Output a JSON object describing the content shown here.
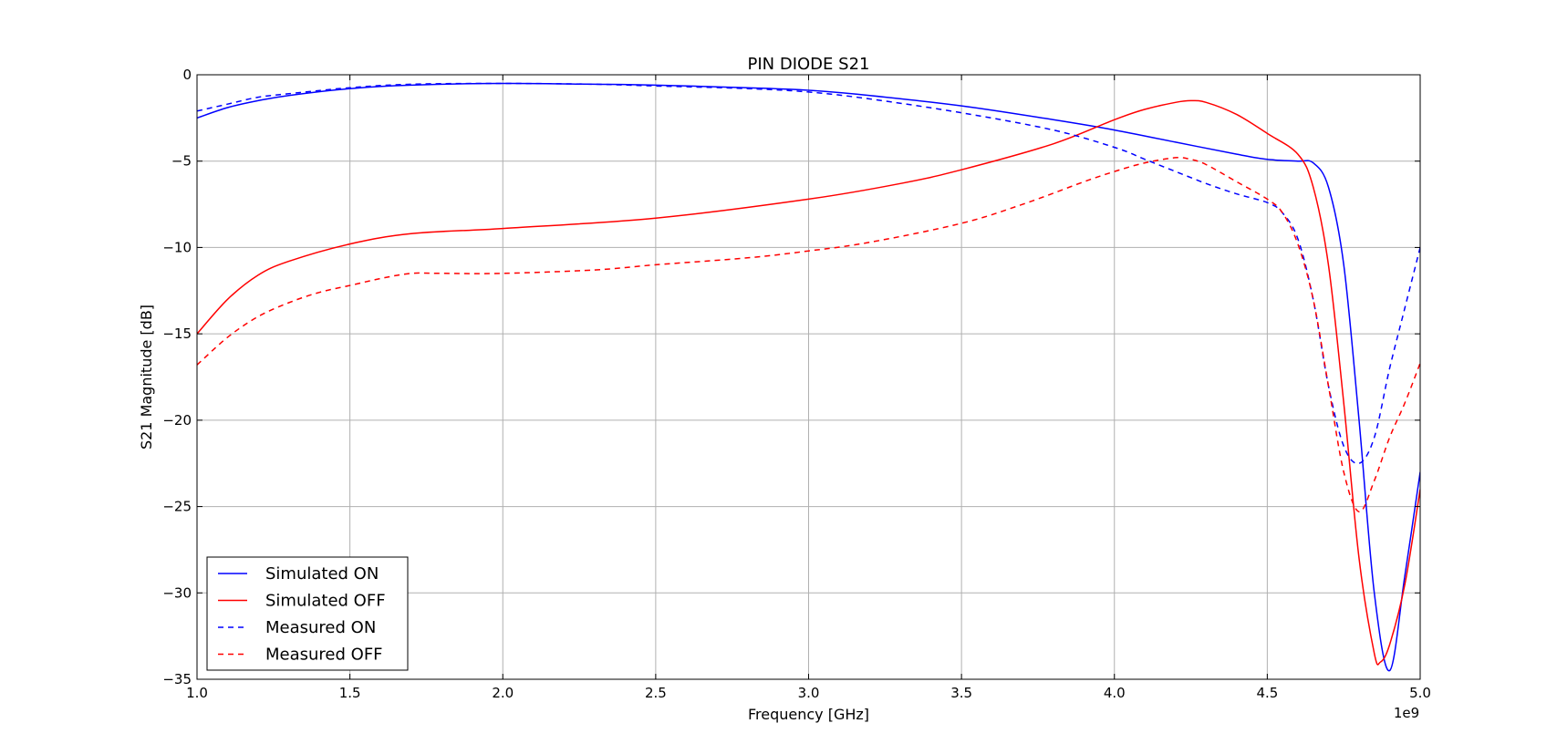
{
  "chart_data": {
    "type": "line",
    "title": "PIN DIODE S21",
    "xlabel": "Frequency [GHz]",
    "ylabel": "S21 Magnitude [dB]",
    "x_offset_text": "1e9",
    "xlim": [
      1.0,
      5.0
    ],
    "ylim": [
      -35,
      0
    ],
    "xticks": [
      "1.0",
      "1.5",
      "2.0",
      "2.5",
      "3.0",
      "3.5",
      "4.0",
      "4.5",
      "5.0"
    ],
    "yticks": [
      "0",
      "−5",
      "−10",
      "−15",
      "−20",
      "−25",
      "−30",
      "−35"
    ],
    "grid": true,
    "legend_position": "bottom-left",
    "series": [
      {
        "name": "Simulated ON",
        "color": "#0000ff",
        "style": "solid",
        "x": [
          1.0,
          1.1,
          1.2,
          1.3,
          1.5,
          1.7,
          2.0,
          2.3,
          2.5,
          2.8,
          3.0,
          3.2,
          3.5,
          3.8,
          4.0,
          4.2,
          4.4,
          4.5,
          4.6,
          4.65,
          4.7,
          4.75,
          4.8,
          4.85,
          4.9,
          4.95,
          5.0
        ],
        "y": [
          -2.5,
          -1.9,
          -1.5,
          -1.2,
          -0.8,
          -0.6,
          -0.5,
          -0.55,
          -0.6,
          -0.75,
          -0.9,
          -1.2,
          -1.8,
          -2.6,
          -3.2,
          -3.9,
          -4.6,
          -4.9,
          -5.0,
          -5.1,
          -6.5,
          -11.0,
          -20.0,
          -30.0,
          -34.5,
          -29.0,
          -23.0
        ]
      },
      {
        "name": "Simulated OFF",
        "color": "#ff0000",
        "style": "solid",
        "x": [
          1.0,
          1.1,
          1.2,
          1.3,
          1.5,
          1.7,
          2.0,
          2.5,
          3.0,
          3.3,
          3.5,
          3.8,
          4.0,
          4.1,
          4.2,
          4.25,
          4.3,
          4.4,
          4.5,
          4.6,
          4.65,
          4.7,
          4.75,
          4.8,
          4.85,
          4.87,
          4.9,
          4.95,
          5.0
        ],
        "y": [
          -15.0,
          -13.0,
          -11.6,
          -10.8,
          -9.8,
          -9.2,
          -8.9,
          -8.3,
          -7.2,
          -6.3,
          -5.5,
          -4.0,
          -2.6,
          -2.0,
          -1.6,
          -1.5,
          -1.6,
          -2.3,
          -3.4,
          -4.6,
          -6.5,
          -11.0,
          -19.0,
          -28.0,
          -33.5,
          -34.0,
          -33.0,
          -29.5,
          -24.0
        ]
      },
      {
        "name": "Measured ON",
        "color": "#0000ff",
        "style": "dashed",
        "x": [
          1.0,
          1.1,
          1.2,
          1.3,
          1.5,
          1.7,
          2.0,
          2.3,
          2.5,
          2.8,
          3.0,
          3.2,
          3.5,
          3.8,
          4.0,
          4.1,
          4.2,
          4.3,
          4.4,
          4.5,
          4.55,
          4.6,
          4.65,
          4.7,
          4.75,
          4.8,
          4.85,
          4.9,
          4.95,
          5.0
        ],
        "y": [
          -2.1,
          -1.7,
          -1.3,
          -1.1,
          -0.75,
          -0.55,
          -0.5,
          -0.55,
          -0.65,
          -0.8,
          -1.0,
          -1.4,
          -2.2,
          -3.2,
          -4.2,
          -4.9,
          -5.6,
          -6.3,
          -6.9,
          -7.4,
          -8.0,
          -9.5,
          -13.0,
          -18.0,
          -21.5,
          -22.5,
          -21.0,
          -17.0,
          -13.5,
          -10.0
        ]
      },
      {
        "name": "Measured OFF",
        "color": "#ff0000",
        "style": "dashed",
        "x": [
          1.0,
          1.1,
          1.2,
          1.3,
          1.4,
          1.5,
          1.6,
          1.7,
          1.8,
          2.0,
          2.3,
          2.5,
          2.8,
          3.0,
          3.2,
          3.5,
          3.7,
          3.9,
          4.0,
          4.1,
          4.2,
          4.25,
          4.3,
          4.4,
          4.5,
          4.55,
          4.6,
          4.65,
          4.7,
          4.75,
          4.8,
          4.85,
          4.9,
          4.95,
          5.0
        ],
        "y": [
          -16.8,
          -15.2,
          -14.0,
          -13.2,
          -12.6,
          -12.2,
          -11.8,
          -11.5,
          -11.5,
          -11.5,
          -11.3,
          -11.0,
          -10.6,
          -10.2,
          -9.7,
          -8.6,
          -7.5,
          -6.2,
          -5.6,
          -5.1,
          -4.8,
          -4.9,
          -5.2,
          -6.2,
          -7.2,
          -8.0,
          -9.8,
          -13.0,
          -18.0,
          -23.0,
          -25.3,
          -23.5,
          -21.0,
          -19.0,
          -16.7
        ]
      }
    ]
  }
}
